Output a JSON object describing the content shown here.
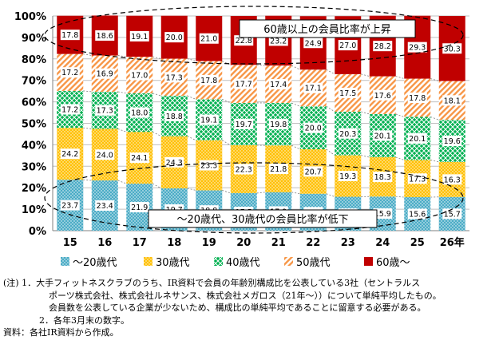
{
  "chart_data": {
    "type": "bar",
    "stacked": true,
    "percent": true,
    "categories": [
      "15",
      "16",
      "17",
      "18",
      "19",
      "20",
      "21",
      "22",
      "23",
      "24",
      "25",
      "26年"
    ],
    "ylim": [
      0,
      100
    ],
    "yticks": [
      "0%",
      "10%",
      "20%",
      "30%",
      "40%",
      "50%",
      "60%",
      "70%",
      "80%",
      "90%",
      "100%"
    ],
    "series": [
      {
        "name": "～20歳代",
        "color": "#4bacc6",
        "pattern": "dots",
        "values": [
          23.7,
          23.4,
          21.9,
          19.7,
          18.8,
          17.5,
          17.9,
          17.2,
          15.8,
          15.9,
          15.6,
          15.7
        ]
      },
      {
        "name": "30歳代",
        "color": "#ffc000",
        "pattern": "dots",
        "values": [
          24.2,
          24.0,
          24.1,
          24.3,
          23.3,
          22.3,
          21.8,
          20.7,
          19.3,
          18.3,
          17.3,
          16.3
        ]
      },
      {
        "name": "40歳代",
        "color": "#00b050",
        "pattern": "cross",
        "values": [
          17.2,
          17.3,
          18.0,
          18.8,
          19.1,
          19.7,
          19.8,
          20.0,
          20.3,
          20.1,
          20.1,
          19.6
        ]
      },
      {
        "name": "50歳代",
        "color": "#f79646",
        "pattern": "diagonal",
        "values": [
          17.2,
          16.9,
          17.0,
          17.3,
          17.8,
          17.7,
          17.4,
          17.1,
          17.5,
          17.6,
          17.8,
          18.1
        ]
      },
      {
        "name": "60歳～",
        "color": "#c00000",
        "pattern": "solid",
        "values": [
          17.8,
          18.6,
          19.1,
          20.0,
          21.0,
          22.8,
          23.2,
          24.9,
          27.0,
          28.2,
          29.3,
          30.3
        ]
      }
    ],
    "annotations": [
      "60歳以上の会員比率が上昇",
      "～20歳代、30歳代の会員比率が低下"
    ],
    "legend_position": "bottom",
    "grid": true
  },
  "notes": [
    "(注) 1．大手フィットネスクラブのうち、IR資料で会員の年齢別構成比を公表している3社（セントラルス",
    "ポーツ株式会社、株式会社ルネサンス、株式会社メガロス（21年～））について単純平均したもの。",
    "会員数を公表している企業が少ないため、構成比の単純平均であることに留意する必要がある。",
    "2．各年3月末の数字。",
    "資料：各社IR資料から作成。"
  ]
}
